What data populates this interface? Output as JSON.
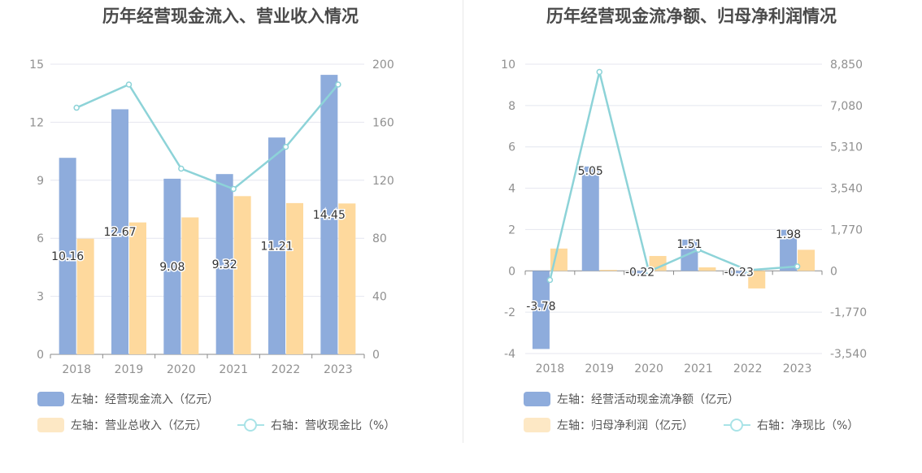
{
  "colors": {
    "bar1": "#8eacdc",
    "bar2": "#fed99d",
    "line": "#8dd3d8",
    "legend_bar1": "#8eacdc",
    "legend_bar2": "#fde8c5",
    "legend_line": "#a9e3e7",
    "grid": "#e4e6ef",
    "axis_text": "#909090"
  },
  "chart_data": [
    {
      "type": "bar",
      "title": "历年经营现金流入、营业收入情况",
      "categories": [
        "2018",
        "2019",
        "2020",
        "2021",
        "2022",
        "2023"
      ],
      "series": [
        {
          "name": "左轴：经营现金流入（亿元）",
          "axis": "left",
          "kind": "bar",
          "values": [
            10.16,
            12.67,
            9.08,
            9.32,
            11.21,
            14.45
          ],
          "labels": [
            "10.16",
            "12.67",
            "9.08",
            "9.32",
            "11.21",
            "14.45"
          ]
        },
        {
          "name": "左轴：营业总收入（亿元）",
          "axis": "left",
          "kind": "bar",
          "values": [
            5.98,
            6.82,
            7.08,
            8.18,
            7.82,
            7.8
          ]
        },
        {
          "name": "右轴：营收现金比（%）",
          "axis": "right",
          "kind": "line",
          "values": [
            170.0,
            186.0,
            128.0,
            114.0,
            143.0,
            186.0
          ]
        }
      ],
      "left_axis": {
        "min": 0,
        "max": 15,
        "ticks": [
          "0",
          "3",
          "6",
          "9",
          "12",
          "15"
        ]
      },
      "right_axis": {
        "min": 0,
        "max": 200,
        "ticks": [
          "0",
          "40",
          "80",
          "120",
          "160",
          "200"
        ]
      },
      "legend": [
        "左轴：经营现金流入（亿元）",
        "左轴：营业总收入（亿元）",
        "右轴：营收现金比（%）"
      ]
    },
    {
      "type": "bar",
      "title": "历年经营现金流净额、归母净利润情况",
      "categories": [
        "2018",
        "2019",
        "2020",
        "2021",
        "2022",
        "2023"
      ],
      "series": [
        {
          "name": "左轴：经营活动现金流净额（亿元）",
          "axis": "left",
          "kind": "bar",
          "values": [
            -3.78,
            5.05,
            -0.22,
            1.51,
            -0.23,
            1.98
          ],
          "labels": [
            "-3.78",
            "5.05",
            "-0.22",
            "1.51",
            "-0.23",
            "1.98"
          ]
        },
        {
          "name": "左轴：归母净利润（亿元）",
          "axis": "left",
          "kind": "bar",
          "values": [
            1.08,
            0.05,
            0.72,
            0.17,
            -0.85,
            1.02
          ]
        },
        {
          "name": "右轴：净现比（%）",
          "axis": "right",
          "kind": "line",
          "values": [
            -390,
            8520,
            -30,
            905,
            27,
            190
          ]
        }
      ],
      "left_axis": {
        "min": -4,
        "max": 10,
        "ticks": [
          "-4",
          "-2",
          "0",
          "2",
          "4",
          "6",
          "8",
          "10"
        ]
      },
      "right_axis": {
        "min": -3540,
        "max": 8850,
        "ticks": [
          "-3,540",
          "-1,770",
          "0",
          "1,770",
          "3,540",
          "5,310",
          "7,080",
          "8,850"
        ]
      },
      "legend": [
        "左轴：经营活动现金流净额（亿元）",
        "左轴：归母净利润（亿元）",
        "右轴：净现比（%）"
      ]
    }
  ]
}
